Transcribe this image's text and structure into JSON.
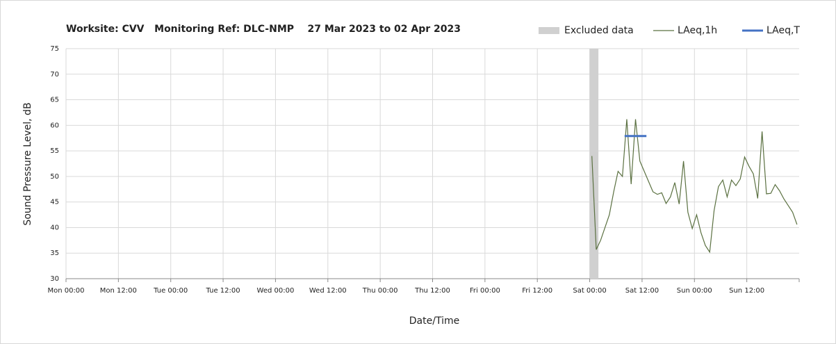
{
  "chart_data": {
    "type": "line",
    "title": "Worksite: CVV   Monitoring Ref: DLC-NMP    27 Mar 2023 to 02 Apr 2023",
    "x_label": "Date/Time",
    "y_label": "Sound Pressure Level, dB",
    "xlim": [
      0,
      168
    ],
    "xticks": [
      {
        "value": 0,
        "label": "Mon 00:00"
      },
      {
        "value": 12,
        "label": "Mon 12:00"
      },
      {
        "value": 24,
        "label": "Tue 00:00"
      },
      {
        "value": 36,
        "label": "Tue 12:00"
      },
      {
        "value": 48,
        "label": "Wed 00:00"
      },
      {
        "value": 60,
        "label": "Wed 12:00"
      },
      {
        "value": 72,
        "label": "Thu 00:00"
      },
      {
        "value": 84,
        "label": "Thu 12:00"
      },
      {
        "value": 96,
        "label": "Fri 00:00"
      },
      {
        "value": 108,
        "label": "Fri 12:00"
      },
      {
        "value": 120,
        "label": "Sat 00:00"
      },
      {
        "value": 132,
        "label": "Sat 12:00"
      },
      {
        "value": 144,
        "label": "Sun 00:00"
      },
      {
        "value": 156,
        "label": "Sun 12:00"
      }
    ],
    "ylim": [
      30,
      75
    ],
    "yticks": [
      30,
      35,
      40,
      45,
      50,
      55,
      60,
      65,
      70,
      75
    ],
    "grid": true,
    "legend": "top-right",
    "excluded": {
      "name": "Excluded data",
      "color": "#d0d0d0",
      "x": [
        120,
        122
      ]
    },
    "series": [
      {
        "name": "LAeq,1h",
        "color": "#5a7040",
        "x": [
          120.5,
          121.5,
          122.5,
          123.5,
          124.5,
          125.5,
          126.5,
          127.5,
          128.5,
          129.5,
          130.5,
          131.5,
          132.5,
          133.5,
          134.5,
          135.5,
          136.5,
          137.5,
          138.5,
          139.5,
          140.5,
          141.5,
          142.5,
          143.5,
          144.5,
          145.5,
          146.5,
          147.5,
          148.5,
          149.5,
          150.5,
          151.5,
          152.5,
          153.5,
          154.5,
          155.5,
          156.5,
          157.5,
          158.5,
          159.5,
          160.5,
          161.5,
          162.5,
          163.5,
          164.5,
          165.5,
          166.5,
          167.5
        ],
        "values": [
          54,
          35.7,
          37.5,
          40,
          42.5,
          47,
          51,
          50,
          61.2,
          48.5,
          61.2,
          53,
          51,
          49,
          47,
          46.5,
          46.8,
          44.7,
          46,
          48.8,
          44.6,
          53,
          43,
          39.8,
          42.5,
          39,
          36.5,
          35.2,
          43.3,
          48,
          49.3,
          46,
          49.3,
          48.2,
          49.5,
          53.8,
          52,
          50.5,
          45.7,
          58.8,
          46.6,
          46.7,
          48.4,
          47.2,
          45.6,
          44.3,
          43,
          40.6
        ]
      },
      {
        "name": "LAeq,T",
        "color": "#4472c4",
        "x": [
          128,
          133
        ],
        "values": [
          57.9,
          57.9
        ]
      }
    ]
  }
}
